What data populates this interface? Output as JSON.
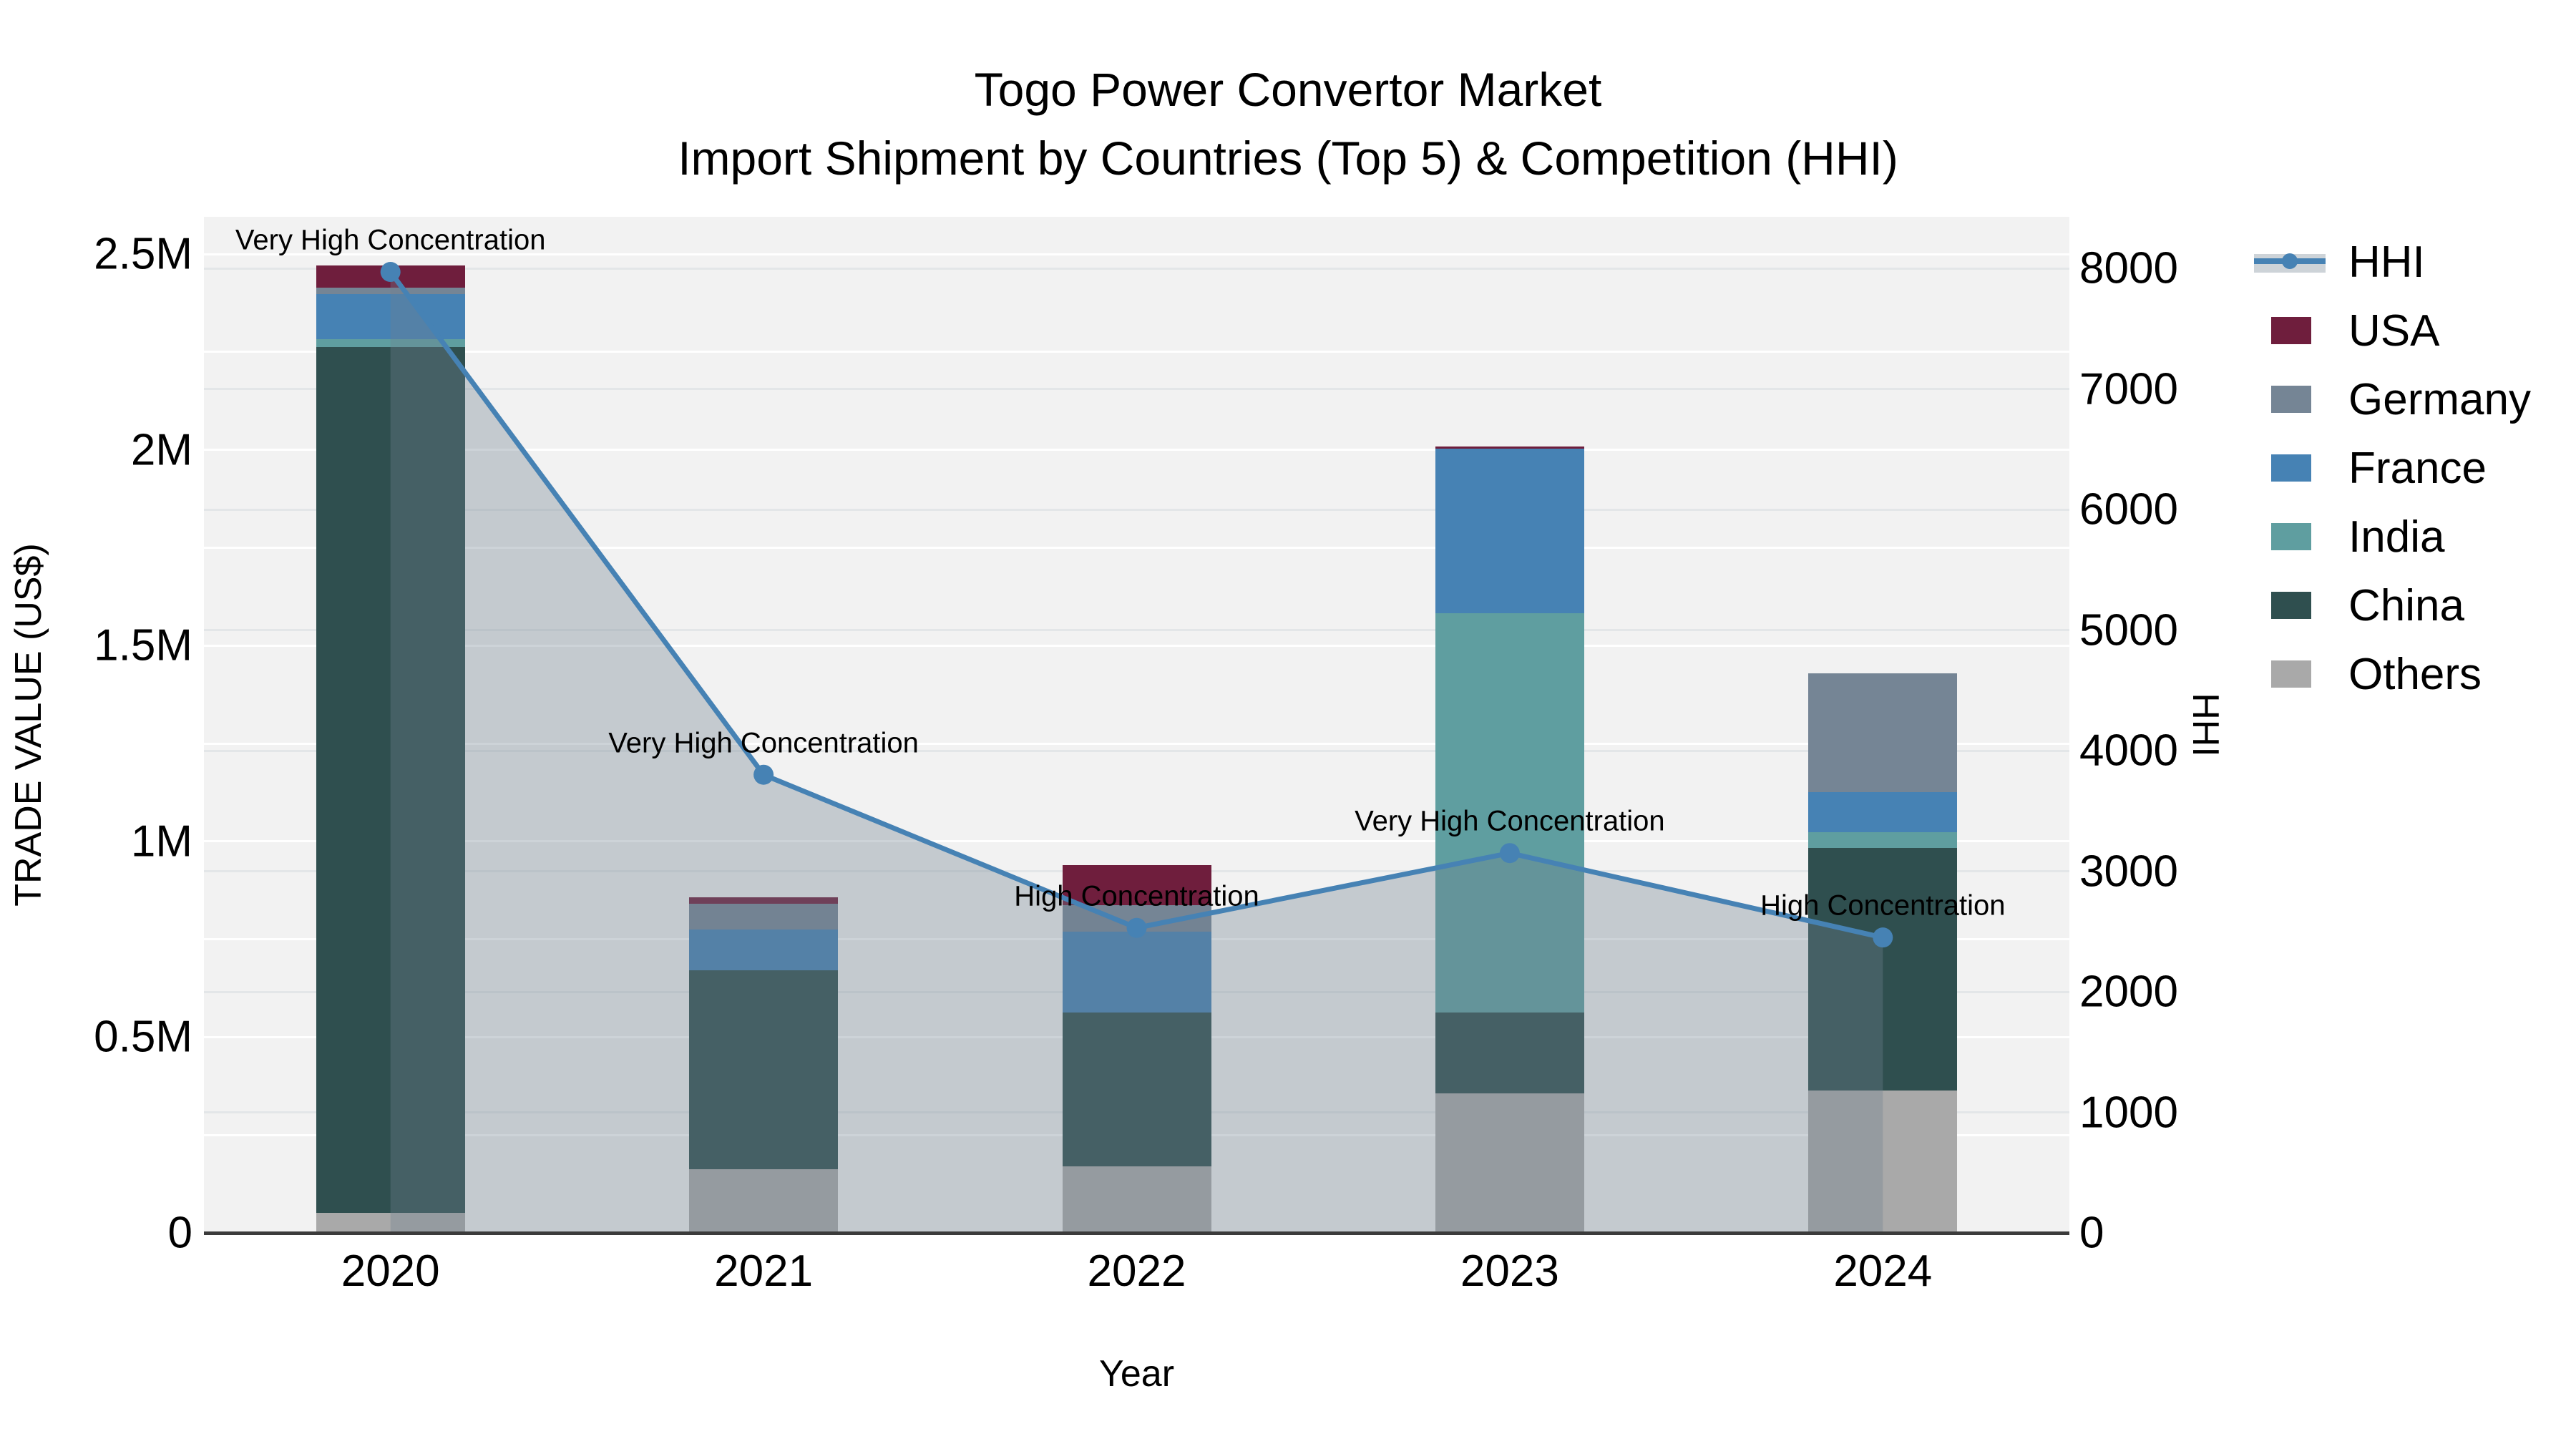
{
  "title": {
    "line1": "Togo Power Convertor Market",
    "line2": "Import Shipment by Countries (Top 5) & Competition (HHI)"
  },
  "colors": {
    "plot_background": "#f2f2f2",
    "axis_line": "#3b3b3b",
    "hhi_line": "#4682b4",
    "hhi_area_fill": "rgba(112,128,144,0.35)",
    "usa": "#6f1e3d",
    "germany": "#758595",
    "france": "#4682b4",
    "india": "#5f9ea0",
    "china": "#2f4f4f",
    "others": "#a9a9a9"
  },
  "legend": {
    "items": [
      {
        "label": "HHI",
        "type": "line",
        "color": "#4682b4"
      },
      {
        "label": "USA",
        "type": "swatch",
        "color": "#6f1e3d"
      },
      {
        "label": "Germany",
        "type": "swatch",
        "color": "#758595"
      },
      {
        "label": "France",
        "type": "swatch",
        "color": "#4682b4"
      },
      {
        "label": "India",
        "type": "swatch",
        "color": "#5f9ea0"
      },
      {
        "label": "China",
        "type": "swatch",
        "color": "#2f4f4f"
      },
      {
        "label": "Others",
        "type": "swatch",
        "color": "#a9a9a9"
      }
    ]
  },
  "chart_data": {
    "type": "bar+line",
    "title": "Togo Power Convertor Market — Import Shipment by Countries (Top 5) & Competition (HHI)",
    "categories": [
      "2020",
      "2021",
      "2022",
      "2023",
      "2024"
    ],
    "xlabel": "Year",
    "left_axis": {
      "label": "TRADE VALUE (US$)",
      "max": 2500000,
      "major_ticks": [
        {
          "label": "0",
          "value": 0
        },
        {
          "label": "0.5M",
          "value": 500000
        },
        {
          "label": "1M",
          "value": 1000000
        },
        {
          "label": "1.5M",
          "value": 1500000
        },
        {
          "label": "2M",
          "value": 2000000
        },
        {
          "label": "2.5M",
          "value": 2500000
        }
      ],
      "minor_grid_step": 250000
    },
    "right_axis": {
      "label": "HHI",
      "max": 8000,
      "major_ticks": [
        {
          "label": "0",
          "value": 0
        },
        {
          "label": "1000",
          "value": 1000
        },
        {
          "label": "2000",
          "value": 2000
        },
        {
          "label": "3000",
          "value": 3000
        },
        {
          "label": "4000",
          "value": 4000
        },
        {
          "label": "5000",
          "value": 5000
        },
        {
          "label": "6000",
          "value": 6000
        },
        {
          "label": "7000",
          "value": 7000
        },
        {
          "label": "8000",
          "value": 8000
        }
      ]
    },
    "series": [
      {
        "name": "USA",
        "color": "#6f1e3d",
        "values": [
          55000,
          16000,
          102000,
          5000,
          0
        ]
      },
      {
        "name": "Germany",
        "color": "#758595",
        "values": [
          18000,
          67000,
          68000,
          0,
          304000
        ]
      },
      {
        "name": "France",
        "color": "#4682b4",
        "values": [
          115000,
          103000,
          206000,
          420000,
          102000
        ]
      },
      {
        "name": "India",
        "color": "#5f9ea0",
        "values": [
          20000,
          0,
          0,
          1020000,
          41000
        ]
      },
      {
        "name": "China",
        "color": "#2f4f4f",
        "values": [
          2211000,
          509000,
          393000,
          207000,
          619000
        ]
      },
      {
        "name": "Others",
        "color": "#a9a9a9",
        "values": [
          51000,
          162000,
          170000,
          356000,
          364000
        ]
      }
    ],
    "stack_order_bottom_to_top": [
      "Others",
      "China",
      "India",
      "France",
      "Germany",
      "USA"
    ],
    "bar_totals": [
      2470000,
      857000,
      939000,
      2008000,
      1430000
    ],
    "line_series": {
      "name": "HHI",
      "color": "#4682b4",
      "area_fill": "rgba(112,128,144,0.35)",
      "values": [
        7970,
        3800,
        2530,
        3150,
        2450
      ]
    },
    "annotations": [
      {
        "category": "2020",
        "text": "Very High Concentration"
      },
      {
        "category": "2021",
        "text": "Very High Concentration"
      },
      {
        "category": "2022",
        "text": "High Concentration"
      },
      {
        "category": "2023",
        "text": "Very High Concentration"
      },
      {
        "category": "2024",
        "text": "High Concentration"
      }
    ],
    "legend_entries": [
      "HHI",
      "USA",
      "Germany",
      "France",
      "India",
      "China",
      "Others"
    ],
    "legend_position": "right",
    "grid": true
  }
}
